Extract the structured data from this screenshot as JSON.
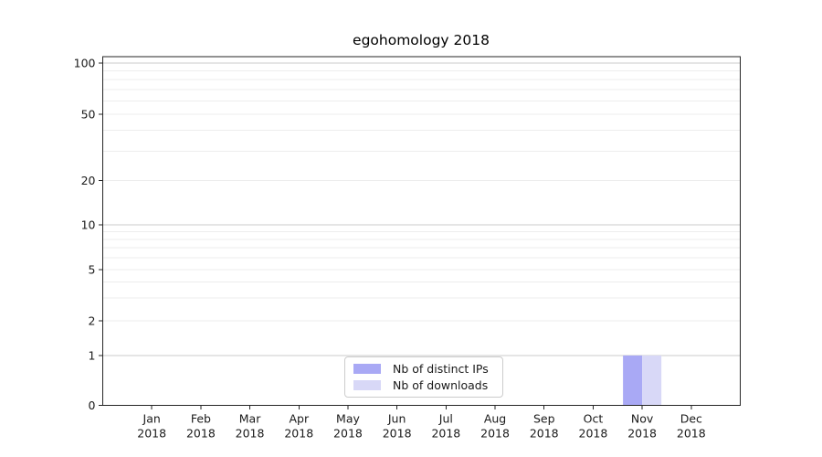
{
  "chart_data": {
    "type": "bar",
    "title": "egohomology 2018",
    "x_categories": [
      {
        "line1": "Jan",
        "line2": "2018"
      },
      {
        "line1": "Feb",
        "line2": "2018"
      },
      {
        "line1": "Mar",
        "line2": "2018"
      },
      {
        "line1": "Apr",
        "line2": "2018"
      },
      {
        "line1": "May",
        "line2": "2018"
      },
      {
        "line1": "Jun",
        "line2": "2018"
      },
      {
        "line1": "Jul",
        "line2": "2018"
      },
      {
        "line1": "Aug",
        "line2": "2018"
      },
      {
        "line1": "Sep",
        "line2": "2018"
      },
      {
        "line1": "Oct",
        "line2": "2018"
      },
      {
        "line1": "Nov",
        "line2": "2018"
      },
      {
        "line1": "Dec",
        "line2": "2018"
      }
    ],
    "series": [
      {
        "name": "Nb of distinct IPs",
        "color": "#a9a9f5",
        "values": [
          0,
          0,
          0,
          0,
          0,
          0,
          0,
          0,
          0,
          0,
          1,
          0
        ]
      },
      {
        "name": "Nb of downloads",
        "color": "#d8d8f7",
        "values": [
          0,
          0,
          0,
          0,
          0,
          0,
          0,
          0,
          0,
          0,
          1,
          0
        ]
      }
    ],
    "y_axis": {
      "scale": "symlog",
      "ylim": [
        0,
        110
      ],
      "tick_values": [
        0,
        1,
        2,
        5,
        10,
        20,
        50,
        100
      ],
      "major_gridlines": [
        1,
        10,
        100
      ],
      "minor_gridlines": [
        2,
        3,
        4,
        5,
        6,
        7,
        8,
        9,
        20,
        30,
        40,
        50,
        60,
        70,
        80,
        90
      ],
      "scale_anchors": [
        [
          0,
          0
        ],
        [
          1,
          0.1429
        ],
        [
          2,
          0.2425
        ],
        [
          5,
          0.3893
        ],
        [
          10,
          0.5177
        ],
        [
          20,
          0.6448
        ],
        [
          50,
          0.8349
        ],
        [
          100,
          0.9817
        ]
      ]
    },
    "grid": "horizontal major and minor",
    "legend": {
      "position": "lower center inside plot"
    },
    "colors": {
      "spine": "#262626",
      "text": "#1a1a1a",
      "grid_major": "#cbcbcb",
      "grid_minor": "#ededed"
    },
    "xlabel": "",
    "ylabel": ""
  }
}
